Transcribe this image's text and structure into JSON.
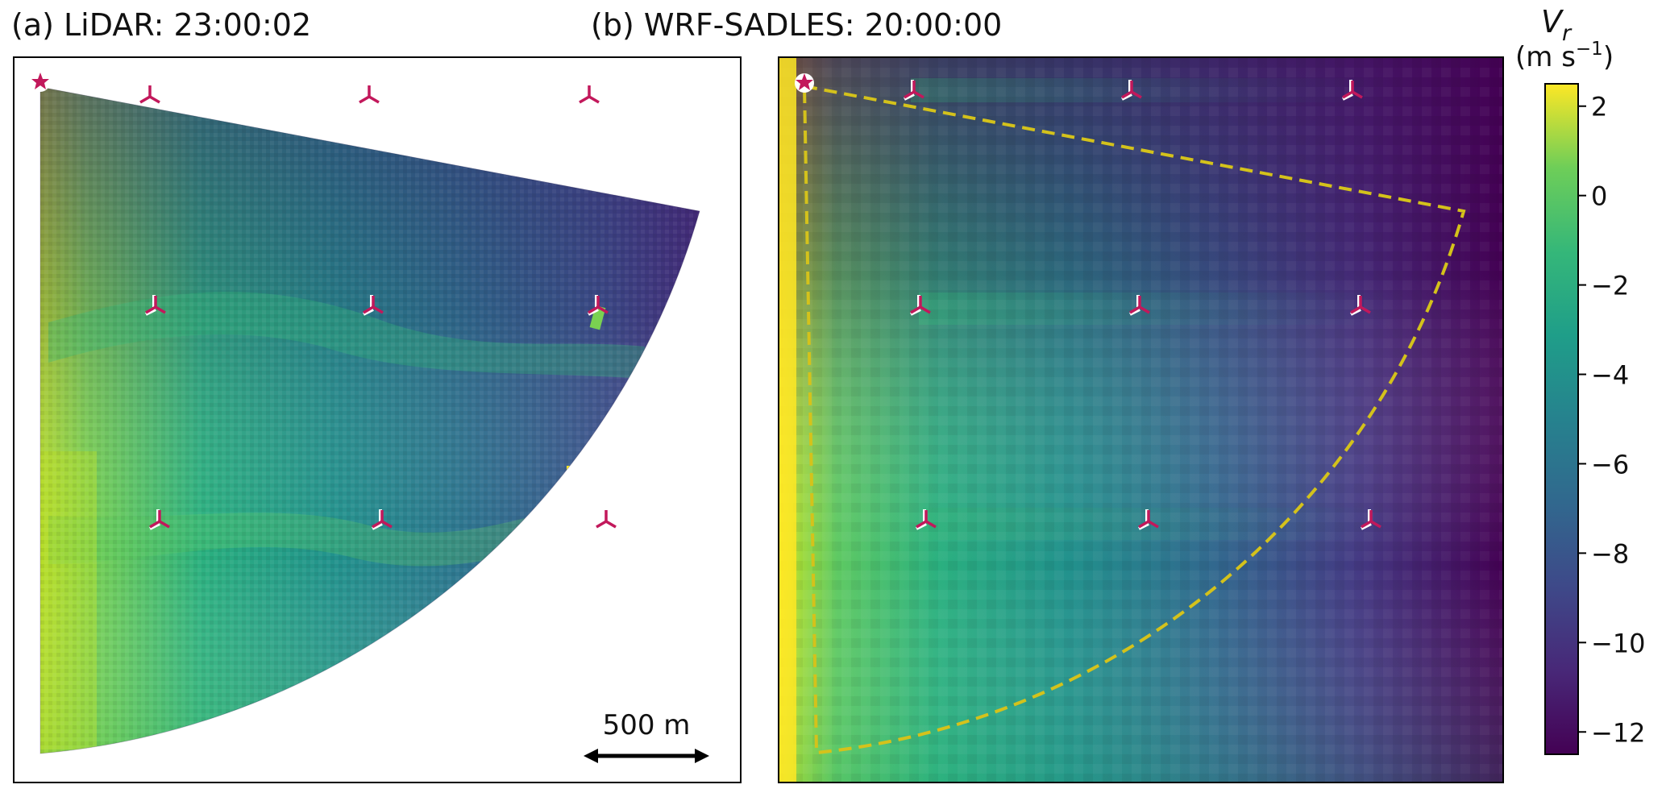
{
  "panels": [
    {
      "title": "(a) LiDAR: 23:00:02"
    },
    {
      "title": "(b) WRF-SADLES: 20:00:00"
    }
  ],
  "scale_bar": {
    "label": "500 m"
  },
  "colorbar": {
    "label_main": "V",
    "label_sub": "r",
    "units_main": "(m s",
    "units_exp": "−1",
    "units_close": ")",
    "range": [
      -12.5,
      2.5
    ],
    "ticks": [
      "2",
      "0",
      "−2",
      "−4",
      "−6",
      "−8",
      "−10",
      "−12"
    ],
    "tick_values": [
      2,
      0,
      -2,
      -4,
      -6,
      -8,
      -10,
      -12
    ],
    "colormap": "viridis"
  },
  "colors": {
    "turbine_marker": "#c2185b",
    "dashed_outline": "#d4c21b",
    "frame": "#000000"
  },
  "chart_data": [
    {
      "type": "heatmap",
      "title": "(a) LiDAR: 23:00:02",
      "variable": "radial velocity V_r (m s^-1)",
      "domain": "sector scan (PPI)",
      "value_range": [
        -12.5,
        2.5
      ],
      "turbine_rows": 3,
      "turbine_columns": 3,
      "lidar_marker": "star"
    },
    {
      "type": "heatmap",
      "title": "(b) WRF-SADLES: 20:00:00",
      "variable": "radial velocity V_r (m s^-1)",
      "domain": "full rectangular field",
      "value_range": [
        -12.5,
        2.5
      ],
      "turbine_rows": 3,
      "turbine_columns": 3,
      "lidar_marker": "star",
      "overlay": "dashed LiDAR sector outline"
    }
  ]
}
